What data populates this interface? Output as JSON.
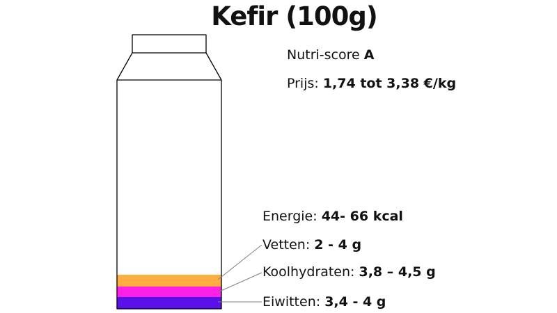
{
  "title": "Kefir (100g)",
  "nutri_score": {
    "label": "Nutri-score",
    "value": "A"
  },
  "price": {
    "label": "Prijs:",
    "value": "1,74 tot 3,38 €/kg"
  },
  "energy": {
    "label": "Energie:",
    "value": "44- 66 kcal"
  },
  "nutrients": [
    {
      "label": "Vetten:",
      "value": "2 - 4 g",
      "color": "#FFAD40"
    },
    {
      "label": "Koolhydraten:",
      "value": "3,8 – 4,5 g",
      "color": "#FF1FE6"
    },
    {
      "label": "Eiwitten:",
      "value": "3,4 - 4 g",
      "color": "#5A10E8"
    }
  ],
  "colors": {
    "outline": "#000000",
    "leader": "#808080"
  }
}
